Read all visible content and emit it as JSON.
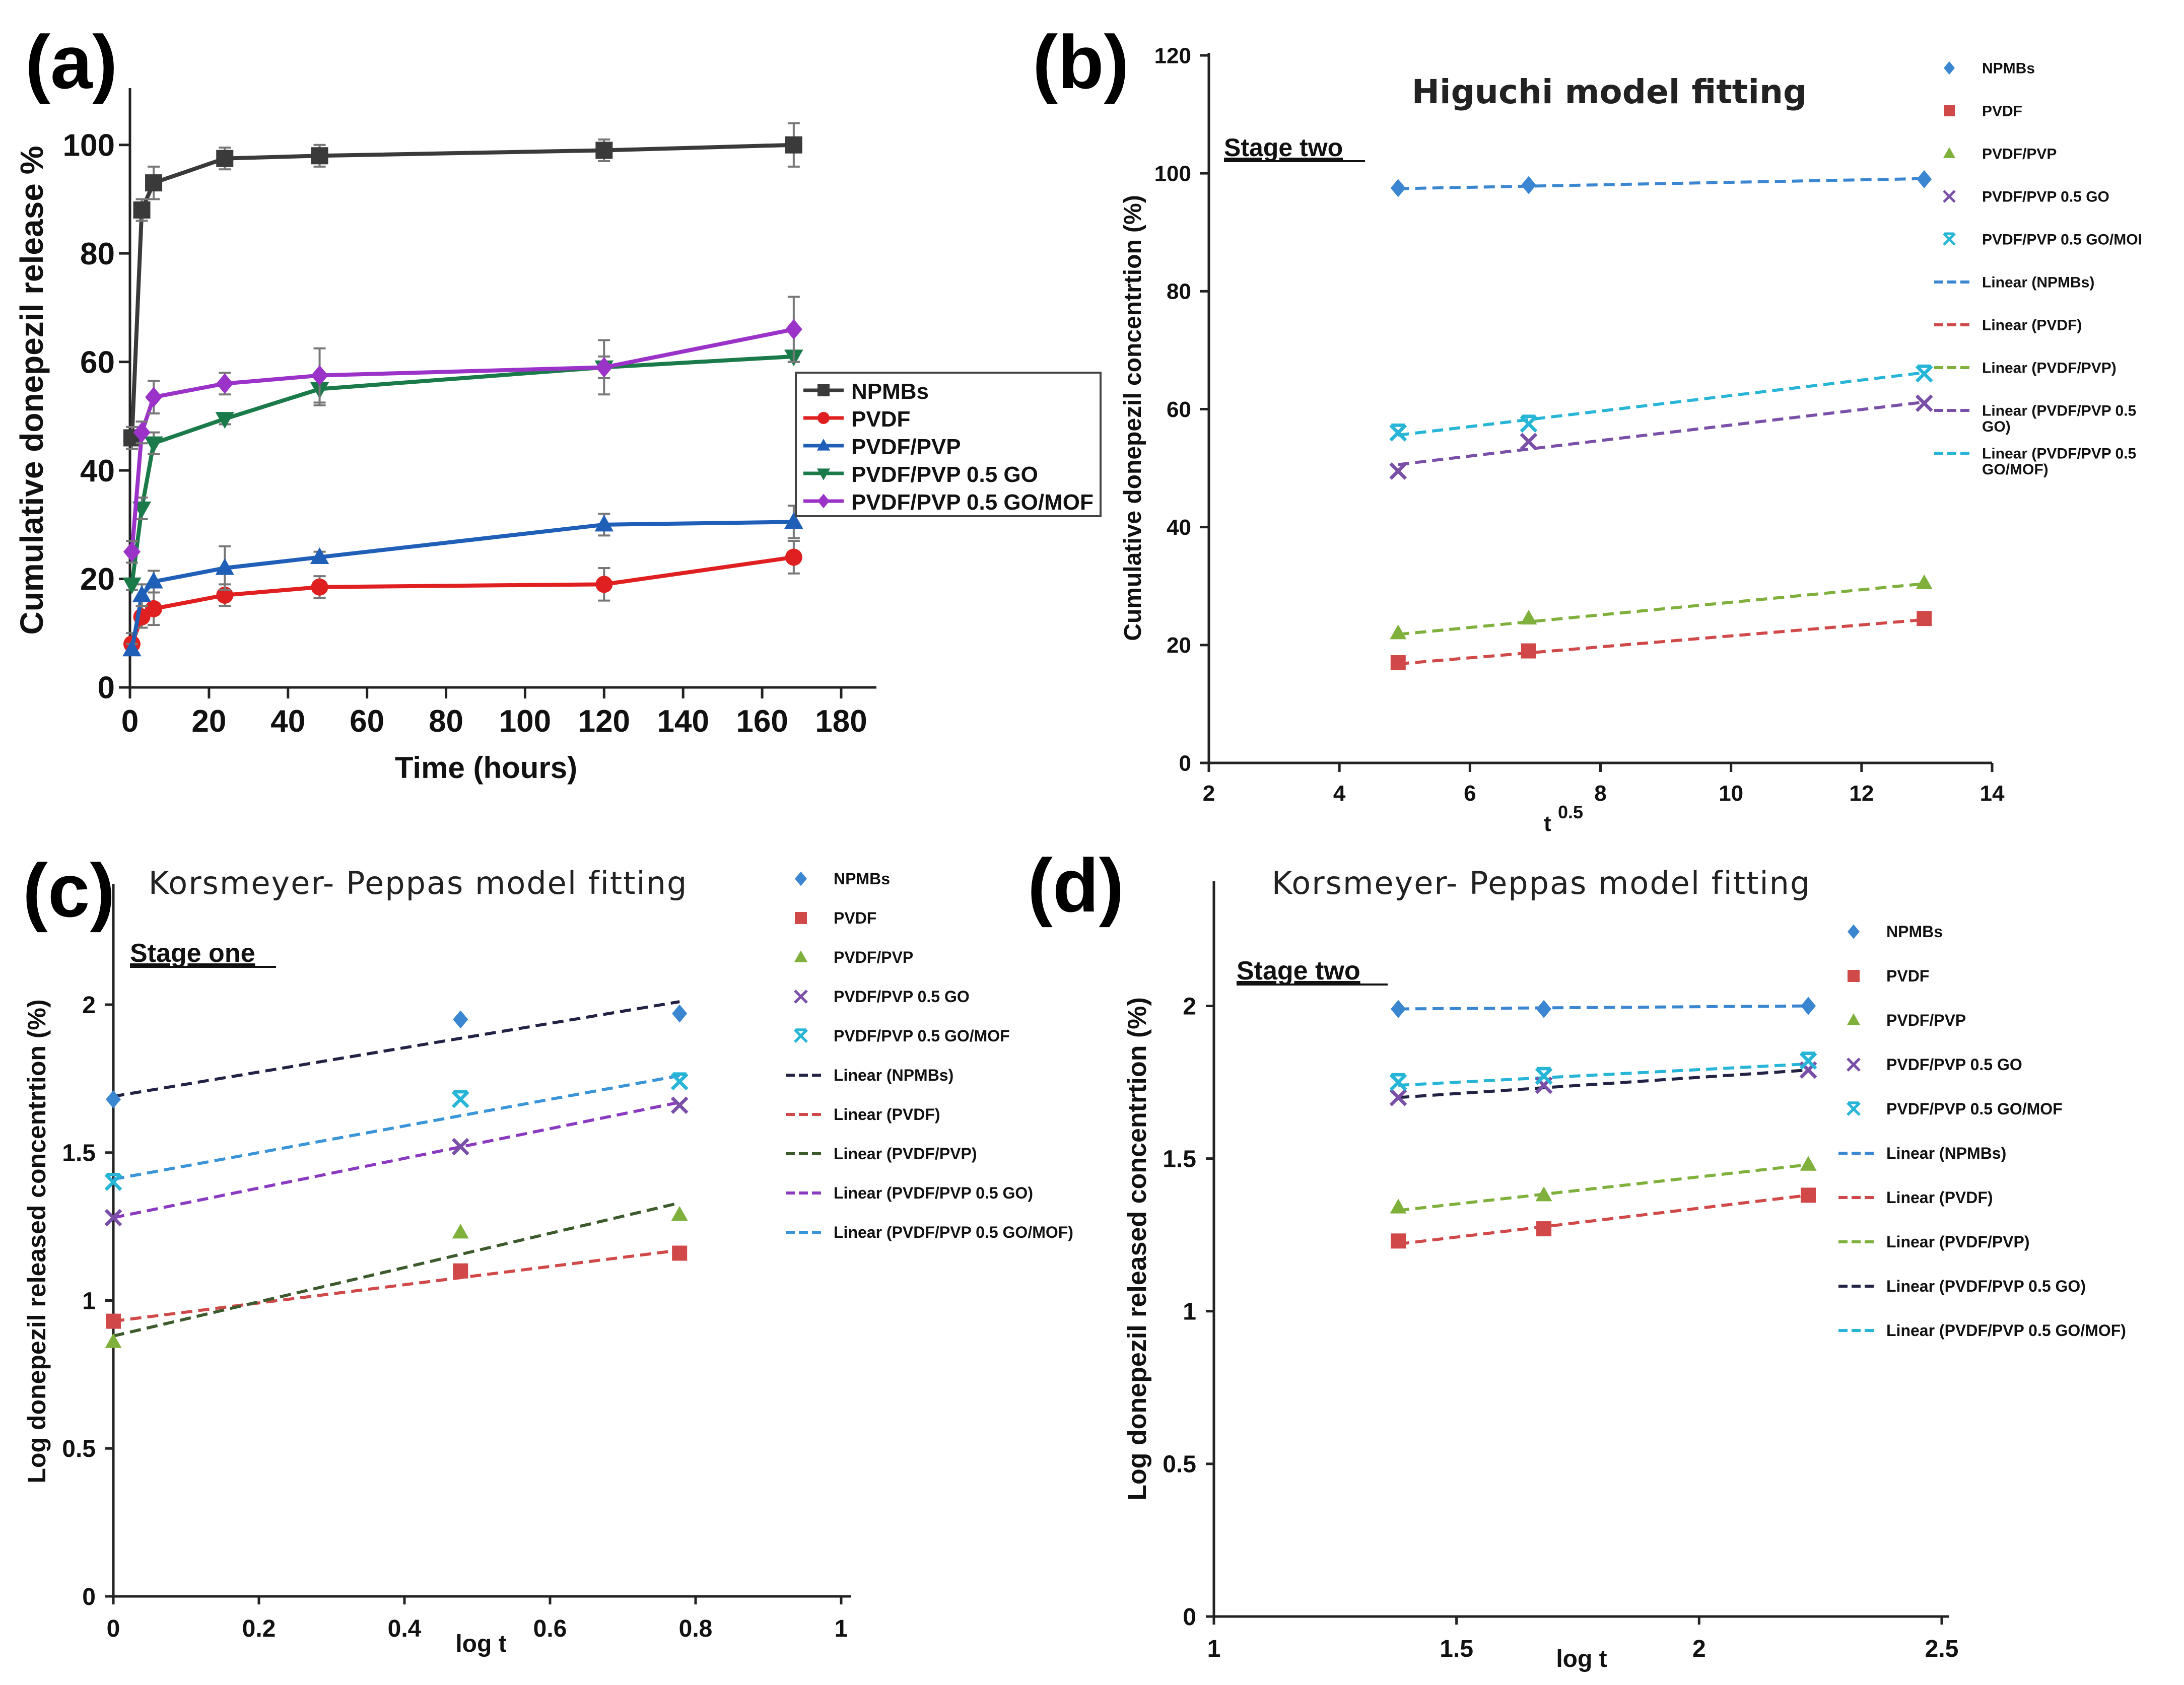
{
  "colors": {
    "NPMBs": "#3a3a3a",
    "PVDF": "#e02020",
    "PVDF/PVP": "#1f5fb8",
    "PVDF/PVP 0.5 GO": "#1a7a4a",
    "PVDF/PVP 0.5 GO/MOF": "#9b33c9",
    "fit_NPMBs": "#3a86d0",
    "fit_PVDF": "#d04848",
    "fit_PVDFPVP": "#7fb03c",
    "fit_GO": "#7a4fa8",
    "fit_MOF": "#26b5d6",
    "linear_NPMBs_c": "#222244",
    "linear_PVDFPVP_c": "#3c5a2c",
    "linear_GO_c": "#8a3ac0",
    "linear_MOF_c": "#3a94d8"
  },
  "chart_data": [
    {
      "panel": "(a)",
      "type": "line",
      "title": "",
      "xlabel": "Time (hours)",
      "ylabel": "Cumulative donepezil release %",
      "xlim": [
        0,
        180
      ],
      "ylim": [
        0,
        110
      ],
      "xticks": [
        "0",
        "20",
        "40",
        "60",
        "80",
        "100",
        "120",
        "140",
        "160",
        "180"
      ],
      "yticks": [
        "0",
        "20",
        "40",
        "60",
        "80",
        "100"
      ],
      "legend_position": "center-right",
      "x": [
        0.5,
        3,
        6,
        24,
        48,
        120,
        168
      ],
      "series": [
        {
          "name": "NPMBs",
          "marker": "square",
          "values": [
            46,
            88,
            93,
            97.5,
            98,
            99,
            100
          ],
          "err": [
            2,
            2,
            3,
            2,
            2,
            2,
            4
          ]
        },
        {
          "name": "PVDF",
          "marker": "circle",
          "values": [
            8,
            13,
            14.5,
            17,
            18.5,
            19,
            24
          ],
          "err": [
            2,
            2,
            3,
            2,
            2,
            3,
            3
          ]
        },
        {
          "name": "PVDF/PVP",
          "marker": "triangle-up",
          "values": [
            7,
            17,
            19.5,
            22,
            24,
            30,
            30.5
          ],
          "err": [
            1,
            2,
            2,
            4,
            1,
            2,
            3
          ]
        },
        {
          "name": "PVDF/PVP 0.5 GO",
          "marker": "triangle-down",
          "values": [
            19,
            33,
            45,
            49.5,
            55,
            59,
            61
          ],
          "err": [
            1,
            2,
            2,
            1,
            3,
            2,
            1
          ]
        },
        {
          "name": "PVDF/PVP 0.5 GO/MOF",
          "marker": "diamond",
          "values": [
            25,
            47,
            53.5,
            56,
            57.5,
            59,
            66
          ],
          "err": [
            2,
            2,
            3,
            2,
            5,
            5,
            6
          ]
        }
      ]
    },
    {
      "panel": "(b)",
      "type": "scatter",
      "title": "Higuchi model fitting",
      "subtitle": "Stage two",
      "xlabel_base": "t",
      "xlabel_sup": "0.5",
      "ylabel": "Cumulative donepezil concentrtion  (%)",
      "xlim": [
        2,
        14
      ],
      "ylim": [
        0,
        120
      ],
      "xticks": [
        "2",
        "4",
        "6",
        "8",
        "10",
        "12",
        "14"
      ],
      "yticks": [
        "0",
        "20",
        "40",
        "60",
        "80",
        "100",
        "120"
      ],
      "x": [
        4.9,
        6.9,
        12.96
      ],
      "series": [
        {
          "name": "NPMBs",
          "marker": "diamond",
          "values": [
            97.5,
            98,
            99
          ]
        },
        {
          "name": "PVDF",
          "marker": "square",
          "values": [
            17,
            19,
            24.5
          ]
        },
        {
          "name": "PVDF/PVP",
          "marker": "triangle",
          "values": [
            22,
            24.5,
            30.5
          ]
        },
        {
          "name": "PVDF/PVP 0.5 GO",
          "marker": "x",
          "values": [
            49.5,
            54.5,
            61
          ]
        },
        {
          "name": "PVDF/PVP 0.5 GO/MOF",
          "marker": "star",
          "values": [
            56,
            57.5,
            66
          ]
        }
      ],
      "fits": [
        {
          "name": "Linear (NPMBs)",
          "from": [
            4.9,
            97.4
          ],
          "to": [
            12.96,
            99.1
          ]
        },
        {
          "name": "Linear (PVDF)",
          "from": [
            4.9,
            16.8
          ],
          "to": [
            12.96,
            24.3
          ]
        },
        {
          "name": "Linear (PVDF/PVP)",
          "from": [
            4.9,
            21.8
          ],
          "to": [
            12.96,
            30.4
          ]
        },
        {
          "name": "Linear (PVDF/PVP 0.5 GO)",
          "from": [
            4.9,
            50.6
          ],
          "to": [
            12.96,
            61.2
          ]
        },
        {
          "name": "Linear (PVDF/PVP 0.5 GO/MOF)",
          "from": [
            4.9,
            55.6
          ],
          "to": [
            12.96,
            66.2
          ]
        }
      ],
      "legend": [
        {
          "label": "NPMBs"
        },
        {
          "label": "PVDF"
        },
        {
          "label": "PVDF/PVP"
        },
        {
          "label": "PVDF/PVP 0.5 GO"
        },
        {
          "label": "PVDF/PVP 0.5 GO/MOI"
        },
        {
          "label": "Linear (NPMBs)"
        },
        {
          "label": "Linear (PVDF)"
        },
        {
          "label": "Linear (PVDF/PVP)"
        },
        {
          "label": "Linear (PVDF/PVP 0.5",
          "label2": "GO)"
        },
        {
          "label": "Linear (PVDF/PVP 0.5",
          "label2": "GO/MOF)"
        }
      ]
    },
    {
      "panel": "(c)",
      "type": "scatter",
      "title": "Korsmeyer- Peppas  model  fitting",
      "subtitle": "Stage one",
      "xlabel": "log t",
      "ylabel": "Log donepezil released concentrtion  (%)",
      "xlim": [
        0,
        1
      ],
      "ylim": [
        0,
        2.4
      ],
      "xticks": [
        "0",
        "0.2",
        "0.4",
        "0.6",
        "0.8",
        "1"
      ],
      "yticks": [
        "0",
        "0.5",
        "1",
        "1.5",
        "2"
      ],
      "x": [
        0,
        0.477,
        0.778
      ],
      "series": [
        {
          "name": "NPMBs",
          "marker": "diamond",
          "values": [
            1.68,
            1.95,
            1.97
          ]
        },
        {
          "name": "PVDF",
          "marker": "square",
          "values": [
            0.93,
            1.1,
            1.16
          ]
        },
        {
          "name": "PVDF/PVP",
          "marker": "triangle",
          "values": [
            0.86,
            1.23,
            1.29
          ]
        },
        {
          "name": "PVDF/PVP 0.5 GO",
          "marker": "x",
          "values": [
            1.28,
            1.52,
            1.66
          ]
        },
        {
          "name": "PVDF/PVP 0.5 GO/MOF",
          "marker": "star",
          "values": [
            1.4,
            1.68,
            1.74
          ]
        }
      ],
      "fits": [
        {
          "name": "Linear (NPMBs)",
          "from": [
            0,
            1.69
          ],
          "to": [
            0.778,
            2.01
          ]
        },
        {
          "name": "Linear (PVDF)",
          "from": [
            0,
            0.93
          ],
          "to": [
            0.778,
            1.17
          ]
        },
        {
          "name": "Linear (PVDF/PVP)",
          "from": [
            0,
            0.88
          ],
          "to": [
            0.778,
            1.33
          ]
        },
        {
          "name": "Linear (PVDF/PVP 0.5 GO)",
          "from": [
            0,
            1.28
          ],
          "to": [
            0.778,
            1.67
          ]
        },
        {
          "name": "Linear (PVDF/PVP 0.5 GO/MOF)",
          "from": [
            0,
            1.41
          ],
          "to": [
            0.778,
            1.76
          ]
        }
      ],
      "legend": [
        {
          "label": "NPMBs"
        },
        {
          "label": "PVDF"
        },
        {
          "label": "PVDF/PVP"
        },
        {
          "label": "PVDF/PVP 0.5 GO"
        },
        {
          "label": "PVDF/PVP 0.5 GO/MOF"
        },
        {
          "label": "Linear (NPMBs)"
        },
        {
          "label": "Linear (PVDF)"
        },
        {
          "label": "Linear (PVDF/PVP)"
        },
        {
          "label": "Linear (PVDF/PVP 0.5 GO)"
        },
        {
          "label": "Linear (PVDF/PVP 0.5 GO/MOF)"
        }
      ]
    },
    {
      "panel": "(d)",
      "type": "scatter",
      "title": "Korsmeyer- Peppas  model  fitting",
      "subtitle": "Stage two",
      "xlabel": "log t",
      "ylabel": "Log donepezil released concentrtion  (%)",
      "xlim": [
        1,
        2.5
      ],
      "ylim": [
        0,
        2.4
      ],
      "xticks": [
        "1",
        "1.5",
        "2",
        "2.5"
      ],
      "yticks": [
        "0",
        "0.5",
        "1",
        "1.5",
        "2"
      ],
      "x": [
        1.38,
        1.68,
        2.225
      ],
      "series": [
        {
          "name": "NPMBs",
          "marker": "diamond",
          "values": [
            1.99,
            1.99,
            2.0
          ]
        },
        {
          "name": "PVDF",
          "marker": "square",
          "values": [
            1.23,
            1.27,
            1.38
          ]
        },
        {
          "name": "PVDF/PVP",
          "marker": "triangle",
          "values": [
            1.34,
            1.38,
            1.48
          ]
        },
        {
          "name": "PVDF/PVP 0.5 GO",
          "marker": "x",
          "values": [
            1.7,
            1.74,
            1.79
          ]
        },
        {
          "name": "PVDF/PVP 0.5 GO/MOF",
          "marker": "star",
          "values": [
            1.75,
            1.77,
            1.82
          ]
        }
      ],
      "fits": [
        {
          "name": "Linear (NPMBs)",
          "from": [
            1.38,
            1.99
          ],
          "to": [
            2.225,
            2.0
          ]
        },
        {
          "name": "Linear (PVDF)",
          "from": [
            1.38,
            1.22
          ],
          "to": [
            2.225,
            1.38
          ]
        },
        {
          "name": "Linear (PVDF/PVP)",
          "from": [
            1.38,
            1.33
          ],
          "to": [
            2.225,
            1.48
          ]
        },
        {
          "name": "Linear (PVDF/PVP 0.5 GO)",
          "from": [
            1.38,
            1.7
          ],
          "to": [
            2.225,
            1.79
          ]
        },
        {
          "name": "Linear (PVDF/PVP 0.5 GO/MOF)",
          "from": [
            1.38,
            1.74
          ],
          "to": [
            2.225,
            1.81
          ]
        }
      ],
      "legend": [
        {
          "label": "NPMBs"
        },
        {
          "label": "PVDF"
        },
        {
          "label": "PVDF/PVP"
        },
        {
          "label": "PVDF/PVP 0.5 GO"
        },
        {
          "label": "PVDF/PVP 0.5 GO/MOF"
        },
        {
          "label": "Linear (NPMBs)"
        },
        {
          "label": "Linear (PVDF)"
        },
        {
          "label": "Linear (PVDF/PVP)"
        },
        {
          "label": "Linear (PVDF/PVP 0.5 GO)"
        },
        {
          "label": "Linear (PVDF/PVP 0.5 GO/MOF)"
        }
      ]
    }
  ]
}
